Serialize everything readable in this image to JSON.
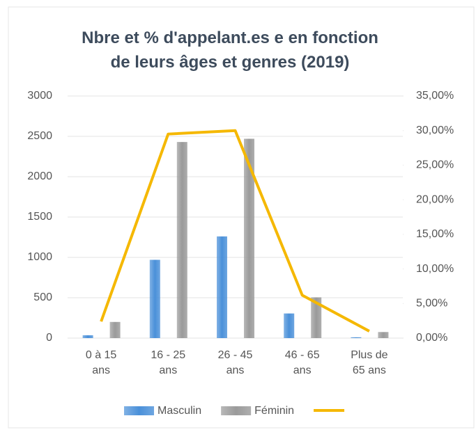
{
  "chart_data": {
    "type": "bar_line",
    "title": "Nbre et % d'appelant.es e en fonction de leurs âges et genres (2019)",
    "categories": [
      "0 à 15 ans",
      "16 - 25 ans",
      "26 - 45 ans",
      "46 - 65 ans",
      "Plus de 65 ans"
    ],
    "series": [
      {
        "name": "Masculin",
        "color": "#4a90d9",
        "values": [
          35,
          970,
          1260,
          305,
          10
        ]
      },
      {
        "name": "Féminin",
        "color": "#9a9a9a",
        "values": [
          200,
          2430,
          2470,
          505,
          75
        ]
      },
      {
        "color": "#f5b800",
        "axis": "y2",
        "values": [
          2.4,
          29.5,
          30.0,
          6.2,
          1.0
        ]
      }
    ],
    "ylim": [
      0,
      3000
    ],
    "yticks": [
      0,
      500,
      1000,
      1500,
      2000,
      2500,
      3000
    ],
    "y2lim": [
      0,
      35
    ],
    "y2ticks": [
      {
        "value": 0,
        "label": "0,00%"
      },
      {
        "value": 5,
        "label": "5,00%"
      },
      {
        "value": 10,
        "label": "10,00%"
      },
      {
        "value": 15,
        "label": "15,00%"
      },
      {
        "value": 20,
        "label": "20,00%"
      },
      {
        "value": 25,
        "label": "25,00%"
      },
      {
        "value": 30,
        "label": "30,00%"
      },
      {
        "value": 35,
        "label": "35,00%"
      }
    ],
    "grid": true
  }
}
